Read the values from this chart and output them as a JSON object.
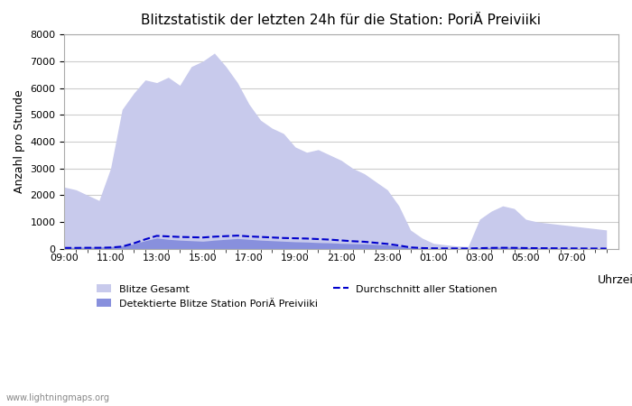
{
  "title": "Blitzstatistik der letzten 24h für die Station: PoriÄ Preiviiki",
  "xlabel": "Uhrzeit",
  "ylabel": "Anzahl pro Stunde",
  "xlim": [
    0,
    48
  ],
  "ylim": [
    0,
    8000
  ],
  "yticks": [
    0,
    1000,
    2000,
    3000,
    4000,
    5000,
    6000,
    7000,
    8000
  ],
  "xtick_labels": [
    "09:00",
    "11:00",
    "13:00",
    "15:00",
    "17:00",
    "19:00",
    "21:00",
    "23:00",
    "01:00",
    "03:00",
    "05:00",
    "07:00"
  ],
  "xtick_positions": [
    0,
    4,
    8,
    12,
    16,
    20,
    24,
    28,
    32,
    36,
    40,
    44
  ],
  "background_color": "#ffffff",
  "plot_bg_color": "#ffffff",
  "grid_color": "#cccccc",
  "fill_gesamt_color": "#c8caec",
  "fill_station_color": "#8890dd",
  "line_color": "#0000cc",
  "watermark": "www.lightningmaps.org",
  "legend": {
    "blitze_gesamt": "Blitze Gesamt",
    "detektierte": "Detektierte Blitze Station PoriÄ Preiviiki",
    "durchschnitt": "Durchschnitt aller Stationen"
  },
  "gesamt": [
    2300,
    2200,
    2000,
    1800,
    3000,
    5200,
    5800,
    6300,
    6200,
    6400,
    6100,
    6800,
    7000,
    7300,
    6800,
    6200,
    5400,
    4800,
    4500,
    4300,
    3800,
    3600,
    3700,
    3500,
    3300,
    3000,
    2800,
    2500,
    2200,
    1600,
    700,
    400,
    200,
    150,
    100,
    80,
    1100,
    1400,
    1600,
    1500,
    1100,
    1000,
    950,
    900,
    850,
    800,
    750,
    700
  ],
  "station": [
    50,
    50,
    60,
    60,
    80,
    100,
    180,
    300,
    400,
    350,
    320,
    300,
    280,
    320,
    350,
    380,
    350,
    320,
    300,
    280,
    260,
    250,
    230,
    220,
    200,
    190,
    180,
    160,
    140,
    100,
    40,
    20,
    10,
    8,
    5,
    3,
    30,
    50,
    60,
    55,
    40,
    30,
    25,
    20,
    15,
    12,
    10,
    8
  ],
  "durchschnitt": [
    30,
    30,
    35,
    35,
    45,
    80,
    200,
    350,
    480,
    460,
    440,
    430,
    420,
    450,
    470,
    490,
    460,
    440,
    420,
    400,
    390,
    380,
    360,
    340,
    310,
    280,
    260,
    220,
    180,
    120,
    50,
    25,
    15,
    12,
    10,
    8,
    20,
    30,
    35,
    32,
    25,
    20,
    18,
    15,
    12,
    10,
    8,
    6
  ]
}
